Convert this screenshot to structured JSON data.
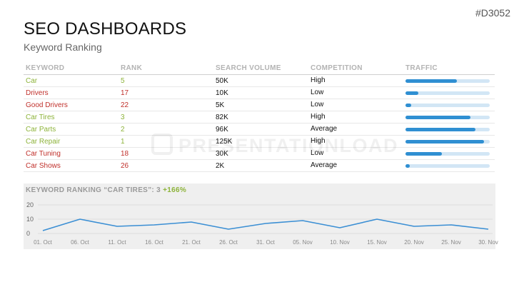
{
  "header": {
    "code": "#D3052",
    "title": "SEO DASHBOARDS",
    "subtitle": "Keyword Ranking"
  },
  "watermark": "PRESENTATIONLOAD",
  "table": {
    "columns": [
      "KEYWORD",
      "RANK",
      "SEARCH VOLUME",
      "COMPETITION",
      "TRAFFIC"
    ],
    "rows": [
      {
        "keyword": "Car",
        "rank": "5",
        "volume": "50K",
        "competition": "High",
        "traffic": 0.61,
        "color": "green"
      },
      {
        "keyword": "Drivers",
        "rank": "17",
        "volume": "10K",
        "competition": "Low",
        "traffic": 0.15,
        "color": "red"
      },
      {
        "keyword": "Good Drivers",
        "rank": "22",
        "volume": "5K",
        "competition": "Low",
        "traffic": 0.07,
        "color": "red"
      },
      {
        "keyword": "Car Tires",
        "rank": "3",
        "volume": "82K",
        "competition": "High",
        "traffic": 0.77,
        "color": "green"
      },
      {
        "keyword": "Car Parts",
        "rank": "2",
        "volume": "96K",
        "competition": "Average",
        "traffic": 0.83,
        "color": "green"
      },
      {
        "keyword": "Car Repair",
        "rank": "1",
        "volume": "125K",
        "competition": "High",
        "traffic": 0.93,
        "color": "green"
      },
      {
        "keyword": "Car Tuning",
        "rank": "18",
        "volume": "30K",
        "competition": "Low",
        "traffic": 0.43,
        "color": "red"
      },
      {
        "keyword": "Car Shows",
        "rank": "26",
        "volume": "2K",
        "competition": "Average",
        "traffic": 0.05,
        "color": "red"
      }
    ]
  },
  "chart_title": {
    "prefix": "KEYWORD RANKING “CAR TIRES”: 3",
    "change": "+166%"
  },
  "colors": {
    "good": "#8db33a",
    "bad": "#c0302b",
    "bar": "#2f8fd2",
    "bar_track": "#d2e6f5",
    "line": "#3b8fd4"
  },
  "chart_data": {
    "type": "line",
    "title": "KEYWORD RANKING “CAR TIRES”: 3 +166%",
    "x": [
      "01. Oct",
      "06. Oct",
      "11. Oct",
      "16. Oct",
      "21. Oct",
      "26. Oct",
      "31. Oct",
      "05. Nov",
      "10. Nov",
      "15. Nov",
      "20. Nov",
      "25. Nov",
      "30. Nov"
    ],
    "y": [
      2,
      10,
      5,
      6,
      8,
      3,
      7,
      9,
      4,
      10,
      5,
      6,
      3
    ],
    "yticks": [
      0,
      10,
      20
    ],
    "ylim": [
      0,
      20
    ],
    "grid": true
  }
}
